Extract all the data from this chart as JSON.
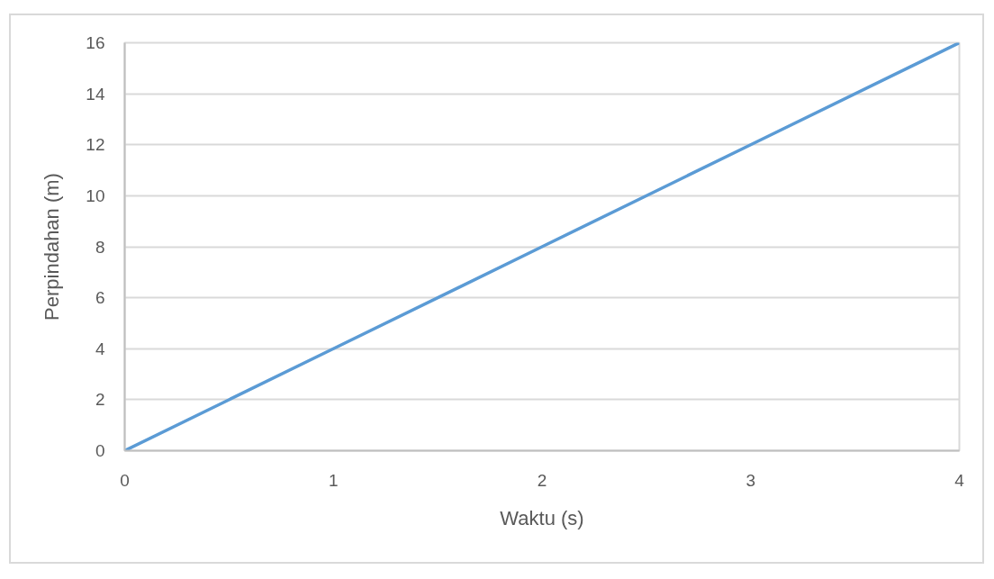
{
  "chart_data": {
    "type": "line",
    "xlabel": "Waktu (s)",
    "ylabel": "Perpindahan (m)",
    "x": [
      0,
      1,
      2,
      3,
      4
    ],
    "series": [
      {
        "color": "#5b9bd5",
        "values": [
          0,
          4,
          8,
          12,
          16
        ]
      }
    ],
    "xlim": [
      0,
      4
    ],
    "ylim": [
      0,
      16
    ],
    "xticks": [
      0,
      1,
      2,
      3,
      4
    ],
    "yticks": [
      0,
      2,
      4,
      6,
      8,
      10,
      12,
      14,
      16
    ],
    "grid": "y",
    "line_style": "solid"
  }
}
